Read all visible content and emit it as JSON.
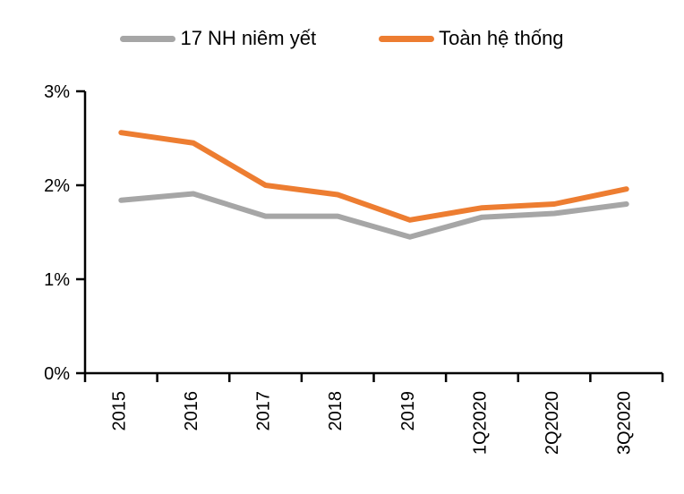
{
  "legend": {
    "items": [
      {
        "label": "17 NH niêm yết",
        "color": "#A6A6A6"
      },
      {
        "label": "Toàn hệ thống",
        "color": "#ED7D31"
      }
    ]
  },
  "chart_data": {
    "type": "line",
    "title": "",
    "xlabel": "",
    "ylabel": "",
    "categories": [
      "2015",
      "2016",
      "2017",
      "2018",
      "2019",
      "1Q2020",
      "2Q2020",
      "3Q2020"
    ],
    "series": [
      {
        "name": "17 NH niêm yết",
        "color": "#A6A6A6",
        "values": [
          1.84,
          1.91,
          1.67,
          1.67,
          1.45,
          1.66,
          1.7,
          1.8
        ]
      },
      {
        "name": "Toàn hệ thống",
        "color": "#ED7D31",
        "values": [
          2.56,
          2.45,
          2.0,
          1.9,
          1.63,
          1.76,
          1.8,
          1.96
        ]
      }
    ],
    "ylim": [
      0,
      3
    ],
    "yticks": [
      0,
      1,
      2,
      3
    ],
    "ytick_labels": [
      "0%",
      "1%",
      "2%",
      "3%"
    ],
    "grid": false,
    "legend_position": "top",
    "axis_color": "#000000",
    "background_color": "#FFFFFF"
  }
}
